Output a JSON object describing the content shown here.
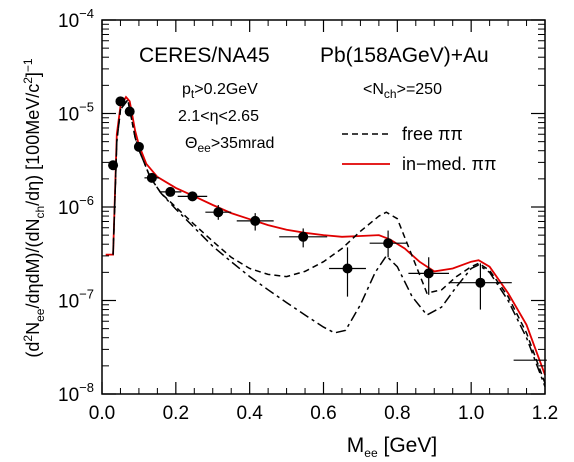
{
  "chart_data": {
    "type": "line",
    "xlabel": {
      "main": "M",
      "sub": "ee",
      "rest": " [GeV]"
    },
    "ylabel_parts": [
      {
        "t": "(d",
        "k": "n"
      },
      {
        "t": "2",
        "k": "sup"
      },
      {
        "t": "N",
        "k": "n"
      },
      {
        "t": "ee",
        "k": "sub"
      },
      {
        "t": "/dηdM)/(dN",
        "k": "n"
      },
      {
        "t": "ch",
        "k": "sub"
      },
      {
        "t": "/dη) [100MeV/c",
        "k": "n"
      },
      {
        "t": "2",
        "k": "sup"
      },
      {
        "t": "]",
        "k": "n"
      },
      {
        "t": "−1",
        "k": "sup"
      }
    ],
    "xlim": [
      0.0,
      1.2
    ],
    "ylim": [
      1e-08,
      0.0001
    ],
    "yscale": "log",
    "x_ticks": [
      "0.0",
      "0.2",
      "0.4",
      "0.6",
      "0.8",
      "1.0",
      "1.2"
    ],
    "x_tick_values": [
      0.0,
      0.2,
      0.4,
      0.6,
      0.8,
      1.0,
      1.2
    ],
    "y_ticks": [
      {
        "value": 1e-08,
        "base": "10",
        "exp": "−8"
      },
      {
        "value": 1e-07,
        "base": "10",
        "exp": "−7"
      },
      {
        "value": 1e-06,
        "base": "10",
        "exp": "−6"
      },
      {
        "value": 1e-05,
        "base": "10",
        "exp": "−5"
      },
      {
        "value": 0.0001,
        "base": "10",
        "exp": "−4"
      }
    ],
    "annotations": {
      "experiment": "CERES/NA45",
      "system": "Pb(158AGeV)+Au",
      "nch": {
        "pre": "<N",
        "sub": "ch",
        "post": ">=250"
      },
      "pt": {
        "pre": "p",
        "sub": "t",
        "post": ">0.2GeV"
      },
      "eta": "2.1<η<2.65",
      "theta": {
        "pre": "Θ",
        "sub": "ee",
        "post": ">35mrad"
      }
    },
    "legend": [
      {
        "label": "free ππ",
        "style": "dashed",
        "color": "#000000"
      },
      {
        "label": "in−med. ππ",
        "style": "solid",
        "color": "#e00000"
      }
    ],
    "data_points": [
      {
        "x": 0.03,
        "y": 2.8e-06,
        "xerr": 0.01,
        "ylo": 2.8e-06,
        "yhi": 2.8e-06
      },
      {
        "x": 0.05,
        "y": 1.35e-05,
        "xerr": 0.01,
        "ylo": 1.35e-05,
        "yhi": 1.35e-05
      },
      {
        "x": 0.075,
        "y": 1.05e-05,
        "xerr": 0.01,
        "ylo": 1.05e-05,
        "yhi": 1.05e-05
      },
      {
        "x": 0.1,
        "y": 4.4e-06,
        "xerr": 0.01,
        "ylo": 4.4e-06,
        "yhi": 4.4e-06
      },
      {
        "x": 0.135,
        "y": 2.05e-06,
        "xerr": 0.02,
        "ylo": 2.05e-06,
        "yhi": 2.05e-06
      },
      {
        "x": 0.185,
        "y": 1.45e-06,
        "xerr": 0.03,
        "ylo": 1.45e-06,
        "yhi": 1.45e-06
      },
      {
        "x": 0.245,
        "y": 1.3e-06,
        "xerr": 0.04,
        "ylo": 1.3e-06,
        "yhi": 1.3e-06
      },
      {
        "x": 0.315,
        "y": 8.8e-07,
        "xerr": 0.035,
        "ylo": 7.3e-07,
        "yhi": 1.05e-06
      },
      {
        "x": 0.415,
        "y": 7.1e-07,
        "xerr": 0.05,
        "ylo": 5.6e-07,
        "yhi": 8.6e-07
      },
      {
        "x": 0.545,
        "y": 4.8e-07,
        "xerr": 0.065,
        "ylo": 3.7e-07,
        "yhi": 5.9e-07
      },
      {
        "x": 0.665,
        "y": 2.2e-07,
        "xerr": 0.05,
        "ylo": 1.1e-07,
        "yhi": 3.7e-07
      },
      {
        "x": 0.775,
        "y": 4.1e-07,
        "xerr": 0.05,
        "ylo": 2.9e-07,
        "yhi": 5.6e-07
      },
      {
        "x": 0.885,
        "y": 1.95e-07,
        "xerr": 0.055,
        "ylo": 1.15e-07,
        "yhi": 2.9e-07
      },
      {
        "x": 1.025,
        "y": 1.55e-07,
        "xerr": 0.085,
        "ylo": 8e-08,
        "yhi": 2.5e-07
      },
      {
        "x": 1.16,
        "y": 2.3e-08,
        "xerr": 0.045,
        "ylo": 2.3e-08,
        "yhi": 2.3e-08
      }
    ],
    "series": [
      {
        "name": "in−med. ππ",
        "color": "#e00000",
        "style": "solid",
        "points": [
          [
            0.01,
            3.1e-07
          ],
          [
            0.03,
            3.1e-07
          ],
          [
            0.04,
            6e-06
          ],
          [
            0.05,
            1.2e-05
          ],
          [
            0.065,
            1.5e-05
          ],
          [
            0.075,
            1.35e-05
          ],
          [
            0.09,
            6.5e-06
          ],
          [
            0.1,
            4.6e-06
          ],
          [
            0.12,
            2.9e-06
          ],
          [
            0.15,
            2.1e-06
          ],
          [
            0.2,
            1.6e-06
          ],
          [
            0.25,
            1.3e-06
          ],
          [
            0.3,
            1.05e-06
          ],
          [
            0.35,
            8.6e-07
          ],
          [
            0.4,
            7.4e-07
          ],
          [
            0.45,
            6.4e-07
          ],
          [
            0.5,
            5.7e-07
          ],
          [
            0.55,
            5.3e-07
          ],
          [
            0.6,
            5e-07
          ],
          [
            0.65,
            4.8e-07
          ],
          [
            0.7,
            4.9e-07
          ],
          [
            0.75,
            5e-07
          ],
          [
            0.78,
            4.5e-07
          ],
          [
            0.82,
            3.6e-07
          ],
          [
            0.86,
            2.6e-07
          ],
          [
            0.9,
            2.05e-07
          ],
          [
            0.95,
            2.2e-07
          ],
          [
            1.0,
            2.6e-07
          ],
          [
            1.02,
            2.7e-07
          ],
          [
            1.05,
            2.3e-07
          ],
          [
            1.1,
            1.2e-07
          ],
          [
            1.15,
            5.5e-08
          ],
          [
            1.2,
            1.6e-08
          ]
        ]
      },
      {
        "name": "free ππ (dashed)",
        "color": "#000000",
        "style": "dashed",
        "points": [
          [
            0.03,
            3.1e-07
          ],
          [
            0.04,
            5e-06
          ],
          [
            0.05,
            1.1e-05
          ],
          [
            0.07,
            1.4e-05
          ],
          [
            0.09,
            5.5e-06
          ],
          [
            0.1,
            4.1e-06
          ],
          [
            0.13,
            2.1e-06
          ],
          [
            0.16,
            1.4e-06
          ],
          [
            0.2,
            1e-06
          ],
          [
            0.25,
            6.5e-07
          ],
          [
            0.3,
            4.3e-07
          ],
          [
            0.35,
            2.9e-07
          ],
          [
            0.4,
            2.2e-07
          ],
          [
            0.45,
            1.9e-07
          ],
          [
            0.5,
            1.8e-07
          ],
          [
            0.55,
            2.05e-07
          ],
          [
            0.6,
            2.6e-07
          ],
          [
            0.65,
            3.6e-07
          ],
          [
            0.7,
            5.5e-07
          ],
          [
            0.75,
            8e-07
          ],
          [
            0.77,
            8.8e-07
          ],
          [
            0.8,
            7.5e-07
          ],
          [
            0.84,
            3e-07
          ],
          [
            0.88,
            1.2e-07
          ],
          [
            0.92,
            1.3e-07
          ],
          [
            0.96,
            1.8e-07
          ],
          [
            1.0,
            2.3e-07
          ],
          [
            1.02,
            2.5e-07
          ],
          [
            1.05,
            2.1e-07
          ],
          [
            1.1,
            1.1e-07
          ],
          [
            1.15,
            4.5e-08
          ],
          [
            1.2,
            1.3e-08
          ]
        ]
      },
      {
        "name": "free ππ (dash-dot)",
        "color": "#000000",
        "style": "dashdot",
        "points": [
          [
            0.03,
            3.1e-07
          ],
          [
            0.04,
            5e-06
          ],
          [
            0.05,
            1.1e-05
          ],
          [
            0.07,
            1.4e-05
          ],
          [
            0.09,
            5.5e-06
          ],
          [
            0.1,
            4.1e-06
          ],
          [
            0.13,
            2.1e-06
          ],
          [
            0.16,
            1.4e-06
          ],
          [
            0.2,
            9.5e-07
          ],
          [
            0.25,
            6e-07
          ],
          [
            0.3,
            3.8e-07
          ],
          [
            0.35,
            2.6e-07
          ],
          [
            0.4,
            1.8e-07
          ],
          [
            0.45,
            1.3e-07
          ],
          [
            0.5,
            9.5e-08
          ],
          [
            0.55,
            7e-08
          ],
          [
            0.6,
            5.2e-08
          ],
          [
            0.63,
            4.5e-08
          ],
          [
            0.66,
            4.8e-08
          ],
          [
            0.7,
            9e-08
          ],
          [
            0.74,
            2e-07
          ],
          [
            0.77,
            3e-07
          ],
          [
            0.8,
            2.3e-07
          ],
          [
            0.84,
            1.1e-07
          ],
          [
            0.88,
            7e-08
          ],
          [
            0.92,
            8.5e-08
          ],
          [
            0.96,
            1.4e-07
          ],
          [
            1.0,
            2.2e-07
          ],
          [
            1.02,
            2.4e-07
          ],
          [
            1.05,
            2e-07
          ],
          [
            1.1,
            1e-07
          ],
          [
            1.15,
            4e-08
          ],
          [
            1.2,
            1.2e-08
          ]
        ]
      }
    ]
  }
}
